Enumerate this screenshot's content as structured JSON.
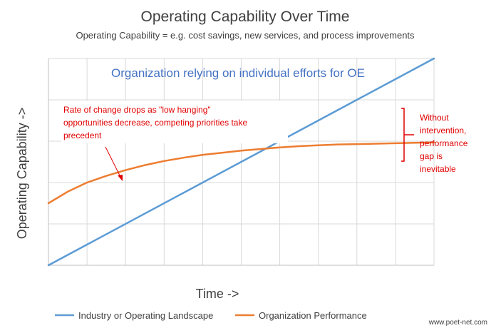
{
  "chart_data": {
    "type": "line",
    "title": "Operating Capability Over Time",
    "subtitle": "Operating Capability = e.g. cost savings, new services, and process improvements",
    "inner_title": "Organization relying on individual efforts for OE",
    "xlabel": "Time ->",
    "ylabel": "Operating Capability ->",
    "xlim": [
      0,
      10
    ],
    "ylim": [
      0,
      5
    ],
    "grid": true,
    "legend_position": "bottom",
    "series": [
      {
        "name": "Industry or Operating Landscape",
        "color": "#5B9BD5",
        "x": [
          0,
          10
        ],
        "y": [
          0,
          5
        ]
      },
      {
        "name": "Organization Performance",
        "color": "#ED7D31",
        "x": [
          0,
          0.5,
          1,
          1.5,
          2,
          2.5,
          3,
          3.5,
          4,
          4.5,
          5,
          5.5,
          6,
          6.5,
          7,
          7.5,
          8,
          8.5,
          9,
          9.5,
          10
        ],
        "y": [
          1.5,
          1.78,
          2.0,
          2.16,
          2.3,
          2.42,
          2.52,
          2.6,
          2.67,
          2.72,
          2.77,
          2.81,
          2.85,
          2.88,
          2.9,
          2.92,
          2.93,
          2.94,
          2.95,
          2.96,
          2.97
        ]
      }
    ],
    "annotations": [
      {
        "text_lines": [
          "Rate of change drops as \"low hanging\"",
          "opportunities decrease, competing priorities take",
          "precedent"
        ],
        "color": "#E00000"
      },
      {
        "text_lines": [
          "Without",
          "intervention,",
          "performance",
          "gap is",
          "inevitable"
        ],
        "color": "#E00000"
      }
    ]
  },
  "colors": {
    "title": "#404040",
    "inner_title": "#4472C4",
    "annotation": "#E00000",
    "grid": "#D9D9D9",
    "axis_line": "#BFBFBF"
  },
  "watermark": "www.poet-net.com"
}
